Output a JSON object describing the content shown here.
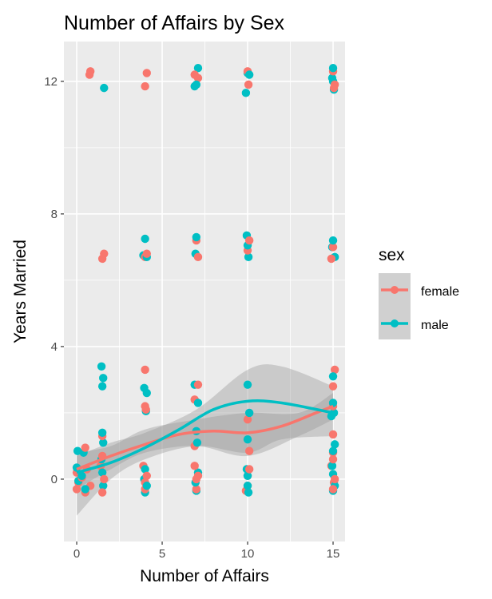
{
  "chart_data": {
    "type": "scatter",
    "title": "Number of Affairs by Sex",
    "xlabel": "Number of Affairs",
    "ylabel": "Years Married",
    "xlim": [
      -0.75,
      15.7
    ],
    "ylim": [
      -1.88,
      13.2
    ],
    "xticks": [
      0,
      5,
      10,
      15
    ],
    "yticks": [
      0,
      4,
      8,
      12
    ],
    "grid": true,
    "legend": {
      "title": "sex",
      "position": "right"
    },
    "series": [
      {
        "name": "female",
        "color": "#F8766D",
        "points": [
          [
            0.8,
            12.3
          ],
          [
            0.75,
            12.2
          ],
          [
            4.1,
            12.25
          ],
          [
            4,
            11.85
          ],
          [
            6.9,
            12.2
          ],
          [
            7.1,
            12.1
          ],
          [
            10,
            12.3
          ],
          [
            10.05,
            11.9
          ],
          [
            15,
            12.3
          ],
          [
            15.1,
            11.9
          ],
          [
            15.05,
            11.8
          ],
          [
            1.5,
            6.65
          ],
          [
            1.6,
            6.8
          ],
          [
            4.1,
            6.8
          ],
          [
            4,
            6.7
          ],
          [
            7.1,
            6.7
          ],
          [
            7,
            7.2
          ],
          [
            10.1,
            7.2
          ],
          [
            10,
            6.9
          ],
          [
            14.9,
            6.65
          ],
          [
            15,
            7.0
          ],
          [
            4,
            3.3
          ],
          [
            15.1,
            3.3
          ],
          [
            7.1,
            2.85
          ],
          [
            4,
            2.2
          ],
          [
            6.9,
            2.4
          ],
          [
            10,
            1.8
          ],
          [
            15,
            2.8
          ],
          [
            15,
            2.2
          ],
          [
            0.5,
            0.95
          ],
          [
            1.5,
            1.3
          ],
          [
            4.05,
            2.1
          ],
          [
            10.1,
            0.85
          ],
          [
            15,
            1.35
          ],
          [
            15,
            0.8
          ],
          [
            6.9,
            1.0
          ],
          [
            0,
            0.2
          ],
          [
            0,
            -0.3
          ],
          [
            0.1,
            -0.1
          ],
          [
            0.3,
            0.05
          ],
          [
            0.5,
            -0.4
          ],
          [
            0.8,
            -0.2
          ],
          [
            0.6,
            0.3
          ],
          [
            1.5,
            -0.4
          ],
          [
            1.6,
            0.0
          ],
          [
            1.4,
            0.4
          ],
          [
            1.5,
            0.7
          ],
          [
            4,
            -0.3
          ],
          [
            4.1,
            0.1
          ],
          [
            3.9,
            0.4
          ],
          [
            4,
            -0.1
          ],
          [
            7,
            -0.3
          ],
          [
            7.1,
            0.1
          ],
          [
            6.9,
            0.4
          ],
          [
            7,
            0.0
          ],
          [
            10,
            -0.2
          ],
          [
            10.1,
            0.3
          ],
          [
            9.9,
            -0.35
          ],
          [
            10,
            0.1
          ],
          [
            15,
            -0.3
          ],
          [
            15.1,
            0.0
          ],
          [
            14.9,
            0.4
          ],
          [
            15,
            0.6
          ],
          [
            15.05,
            -0.1
          ]
        ],
        "smooth": [
          [
            0,
            0.3
          ],
          [
            2,
            0.7
          ],
          [
            4,
            1.05
          ],
          [
            6,
            1.35
          ],
          [
            8,
            1.45
          ],
          [
            10,
            1.4
          ],
          [
            12,
            1.6
          ],
          [
            14,
            2.0
          ],
          [
            15,
            2.2
          ]
        ],
        "ci_lower": [
          [
            0,
            -0.3
          ],
          [
            2,
            0.3
          ],
          [
            4,
            0.8
          ],
          [
            7,
            1.0
          ],
          [
            10,
            0.7
          ],
          [
            13,
            1.3
          ],
          [
            15,
            1.8
          ]
        ],
        "ci_upper": [
          [
            0,
            0.8
          ],
          [
            2,
            1.0
          ],
          [
            4,
            1.5
          ],
          [
            7,
            1.8
          ],
          [
            10,
            2.0
          ],
          [
            13,
            2.0
          ],
          [
            15,
            2.6
          ]
        ]
      },
      {
        "name": "male",
        "color": "#00BFC4",
        "points": [
          [
            1.6,
            11.8
          ],
          [
            7.1,
            12.4
          ],
          [
            6.9,
            11.85
          ],
          [
            7,
            11.9
          ],
          [
            9.9,
            11.65
          ],
          [
            10.1,
            12.2
          ],
          [
            10,
            12.25
          ],
          [
            15,
            12.4
          ],
          [
            14.95,
            12.1
          ],
          [
            15.05,
            11.75
          ],
          [
            15,
            12.0
          ],
          [
            4,
            7.25
          ],
          [
            3.9,
            6.75
          ],
          [
            4.1,
            6.7
          ],
          [
            7,
            7.3
          ],
          [
            6.95,
            6.8
          ],
          [
            9.95,
            7.35
          ],
          [
            10.05,
            6.7
          ],
          [
            10,
            7.05
          ],
          [
            15,
            7.2
          ],
          [
            15.1,
            6.7
          ],
          [
            14.95,
            7.0
          ],
          [
            1.45,
            3.4
          ],
          [
            1.55,
            3.05
          ],
          [
            1.5,
            2.8
          ],
          [
            3.95,
            2.75
          ],
          [
            4.1,
            2.6
          ],
          [
            4.05,
            2.05
          ],
          [
            6.9,
            2.85
          ],
          [
            7.1,
            2.3
          ],
          [
            10,
            2.85
          ],
          [
            10.1,
            2.0
          ],
          [
            15,
            3.1
          ],
          [
            15,
            2.3
          ],
          [
            15.05,
            2.0
          ],
          [
            14.9,
            1.9
          ],
          [
            0.05,
            0.85
          ],
          [
            0.4,
            0.8
          ],
          [
            1.5,
            1.4
          ],
          [
            1.55,
            1.1
          ],
          [
            7,
            1.45
          ],
          [
            7.05,
            1.1
          ],
          [
            10,
            1.2
          ],
          [
            15.1,
            1.05
          ],
          [
            15,
            0.85
          ],
          [
            1.45,
            0.6
          ],
          [
            0,
            0.35
          ],
          [
            0.1,
            -0.05
          ],
          [
            0.5,
            -0.3
          ],
          [
            0.3,
            0.1
          ],
          [
            1.5,
            0.2
          ],
          [
            1.55,
            -0.2
          ],
          [
            4,
            0.3
          ],
          [
            4.1,
            -0.2
          ],
          [
            4,
            -0.4
          ],
          [
            3.95,
            0.0
          ],
          [
            7,
            -0.35
          ],
          [
            7.1,
            0.2
          ],
          [
            6.95,
            -0.1
          ],
          [
            10,
            0.1
          ],
          [
            10.05,
            -0.4
          ],
          [
            9.95,
            0.3
          ],
          [
            10,
            -0.2
          ],
          [
            15,
            0.15
          ],
          [
            15.1,
            -0.2
          ],
          [
            14.95,
            0.4
          ],
          [
            15,
            -0.35
          ]
        ],
        "smooth": [
          [
            0,
            0.2
          ],
          [
            2,
            0.5
          ],
          [
            4,
            0.95
          ],
          [
            6,
            1.5
          ],
          [
            8,
            2.1
          ],
          [
            10,
            2.35
          ],
          [
            12,
            2.3
          ],
          [
            15,
            2.0
          ]
        ],
        "ci_lower": [
          [
            0,
            -1.1
          ],
          [
            2,
            0.0
          ],
          [
            4,
            0.6
          ],
          [
            7,
            1.0
          ],
          [
            10,
            0.8
          ],
          [
            12,
            1.2
          ],
          [
            15,
            1.3
          ]
        ],
        "ci_upper": [
          [
            0,
            0.7
          ],
          [
            2,
            1.1
          ],
          [
            4,
            1.4
          ],
          [
            7,
            2.1
          ],
          [
            10,
            3.3
          ],
          [
            12,
            3.4
          ],
          [
            15,
            2.8
          ]
        ]
      }
    ]
  }
}
